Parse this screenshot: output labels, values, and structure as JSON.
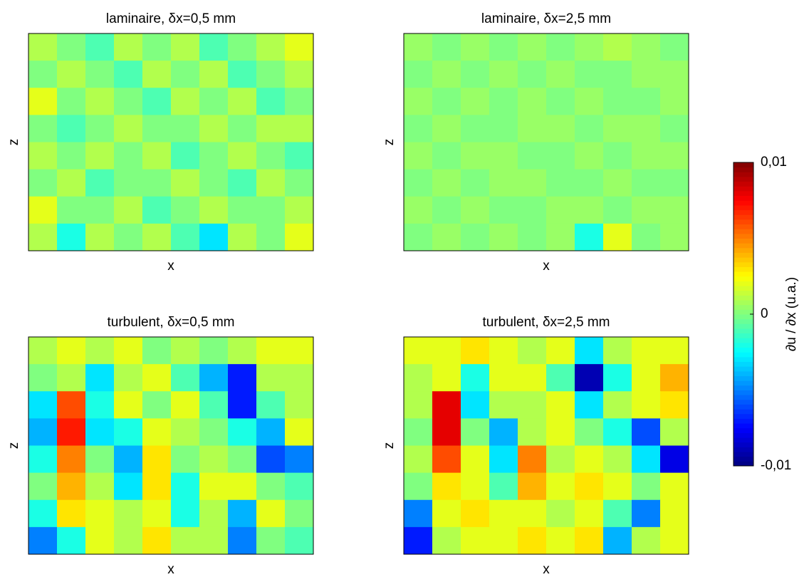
{
  "chart_data": [
    {
      "type": "heatmap",
      "title": "laminaire, δx=0,5 mm",
      "xlabel": "x",
      "ylabel": "z",
      "values": [
        [
          0.001,
          0,
          -0.001,
          0.001,
          0,
          0.001,
          -0.001,
          0,
          0.001,
          0.002
        ],
        [
          0,
          0.001,
          0,
          -0.001,
          0.001,
          0,
          0.001,
          -0.001,
          0,
          0.001
        ],
        [
          0.002,
          0,
          0.001,
          0,
          -0.001,
          0.001,
          0,
          0.001,
          -0.001,
          0
        ],
        [
          0,
          -0.001,
          0,
          0.001,
          0,
          0,
          0.001,
          0,
          0.001,
          0.001
        ],
        [
          0.001,
          0,
          0.001,
          0,
          0.001,
          -0.001,
          0,
          0.001,
          0,
          -0.001
        ],
        [
          0,
          0.001,
          -0.001,
          0,
          0,
          0.001,
          0,
          -0.001,
          0.001,
          0
        ],
        [
          0.002,
          0,
          0,
          0.001,
          -0.001,
          0,
          0.001,
          0,
          0,
          0.001
        ],
        [
          0.001,
          -0.002,
          0.001,
          0,
          0.001,
          -0.001,
          -0.003,
          0.001,
          0,
          0.002
        ]
      ]
    },
    {
      "type": "heatmap",
      "title": "laminaire, δx=2,5 mm",
      "xlabel": "x",
      "ylabel": "z",
      "values": [
        [
          0.0005,
          0,
          0.0005,
          0,
          0.0005,
          0,
          0.0005,
          0.001,
          0.0005,
          0
        ],
        [
          0,
          0.0005,
          0,
          0.0005,
          0,
          0.0005,
          0,
          0,
          0.0005,
          0.0005
        ],
        [
          0.0005,
          0,
          0.0005,
          0,
          0.0005,
          0,
          0.0005,
          0,
          0,
          0.0005
        ],
        [
          0,
          0.0005,
          0,
          0,
          0.0005,
          0.0005,
          0,
          0.0005,
          0.0005,
          0
        ],
        [
          0.0005,
          0,
          0.0005,
          0.0005,
          0,
          0,
          0.0005,
          0,
          0.0005,
          0.0005
        ],
        [
          0,
          0.0005,
          0,
          0.0005,
          0.0005,
          0,
          0,
          0.0005,
          0,
          0
        ],
        [
          0.0005,
          0,
          0.0005,
          0,
          0,
          0.0005,
          0.0005,
          0,
          0.0005,
          0.0005
        ],
        [
          0,
          0.0005,
          0,
          0.0005,
          0,
          0.0005,
          -0.002,
          0.002,
          0,
          0.0005
        ]
      ]
    },
    {
      "type": "heatmap",
      "title": "turbulent, δx=0,5 mm",
      "xlabel": "x",
      "ylabel": "z",
      "values": [
        [
          0.001,
          0.002,
          0.001,
          0.002,
          0,
          0.001,
          0,
          0.001,
          0.002,
          0.002
        ],
        [
          0,
          0.001,
          -0.003,
          0.001,
          0.002,
          -0.001,
          -0.004,
          -0.007,
          0.001,
          0.001
        ],
        [
          -0.003,
          0.006,
          -0.002,
          0.002,
          0,
          0.002,
          -0.001,
          -0.007,
          -0.001,
          0.001
        ],
        [
          -0.004,
          0.007,
          -0.003,
          -0.002,
          0.002,
          0.001,
          0,
          -0.002,
          -0.004,
          0.002
        ],
        [
          -0.002,
          0.005,
          0,
          -0.004,
          0.003,
          0,
          0.001,
          0,
          -0.006,
          -0.005
        ],
        [
          0,
          0.004,
          0.001,
          -0.003,
          0.003,
          -0.002,
          0.002,
          0.002,
          0,
          -0.001
        ],
        [
          -0.002,
          0.003,
          0.002,
          0.001,
          0.002,
          -0.002,
          0.001,
          -0.004,
          0.002,
          0
        ],
        [
          -0.005,
          -0.002,
          0.002,
          0.001,
          0.003,
          0.001,
          0.001,
          -0.005,
          0,
          -0.001
        ]
      ]
    },
    {
      "type": "heatmap",
      "title": "turbulent, δx=2,5 mm",
      "xlabel": "x",
      "ylabel": "z",
      "values": [
        [
          0.002,
          0.002,
          0.003,
          0.002,
          0.001,
          0.002,
          -0.003,
          0.001,
          0.002,
          0.002
        ],
        [
          0.001,
          0.002,
          -0.002,
          0.002,
          0.002,
          -0.001,
          -0.009,
          -0.002,
          0.002,
          0.004
        ],
        [
          0.001,
          0.008,
          -0.003,
          0.001,
          0.001,
          0.002,
          -0.003,
          0.001,
          0.002,
          0.003
        ],
        [
          0,
          0.008,
          0,
          -0.004,
          0.001,
          0.002,
          0,
          -0.002,
          -0.006,
          0.001
        ],
        [
          0.001,
          0.006,
          0.002,
          -0.003,
          0.005,
          0.001,
          0.002,
          0.001,
          -0.003,
          -0.008
        ],
        [
          0,
          0.003,
          0.002,
          -0.001,
          0.004,
          0.002,
          0.003,
          0.002,
          0,
          0.002
        ],
        [
          -0.005,
          0.002,
          0.003,
          0.002,
          0.002,
          0.001,
          0.002,
          -0.001,
          -0.005,
          0.002
        ],
        [
          -0.007,
          0.001,
          0.002,
          0.002,
          0.003,
          0.002,
          0.003,
          -0.004,
          0.001,
          0.002
        ]
      ]
    },
    {
      "type": "colorbar",
      "label": "∂u / ∂x (u.a.)",
      "clim": [
        -0.01,
        0.01
      ],
      "ticks": [
        {
          "value": 0.01,
          "label": "0,01"
        },
        0,
        {
          "value": -0.01,
          "label": "-0,01"
        }
      ]
    }
  ]
}
